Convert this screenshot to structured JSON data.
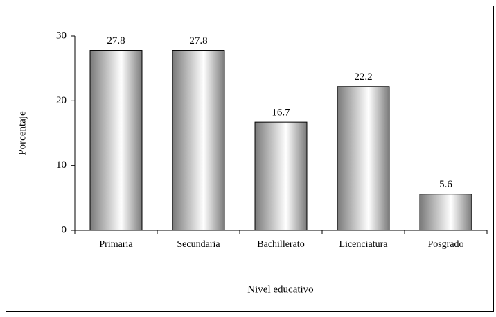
{
  "chart_data": {
    "type": "bar",
    "x_label": "Nivel educativo",
    "y_label": "Porcentaje",
    "categories": [
      "Primaria",
      "Secundaria",
      "Bachillerato",
      "Licenciatura",
      "Posgrado"
    ],
    "values": [
      27.8,
      27.8,
      16.7,
      22.2,
      5.6
    ],
    "color": "#808080",
    "ylim": [
      0,
      30
    ],
    "yticks": [
      0,
      10,
      20,
      30
    ],
    "grid": false
  }
}
